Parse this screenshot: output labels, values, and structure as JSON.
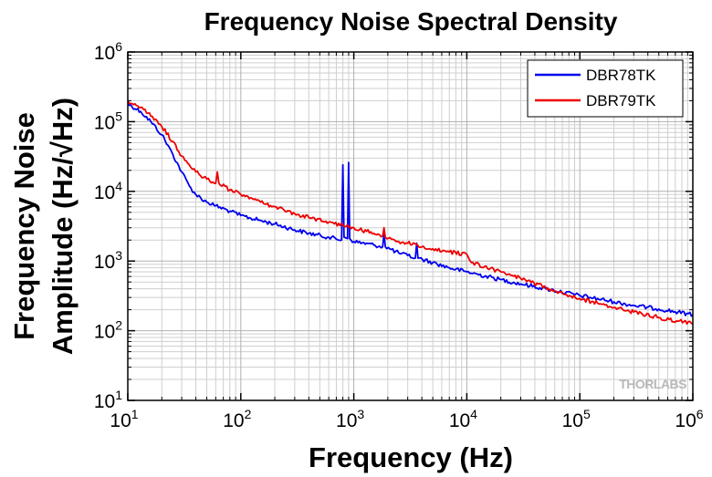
{
  "chart_data": {
    "type": "line",
    "title": "Frequency Noise Spectral Density",
    "xlabel": "Frequency (Hz)",
    "ylabel_line1": "Frequency Noise",
    "ylabel_line2": "Amplitude (Hz/√Hz)",
    "x_scale": "log",
    "y_scale": "log",
    "xlim": [
      10,
      1000000
    ],
    "ylim": [
      10,
      1000000
    ],
    "x_ticks": [
      {
        "base": "10",
        "exp": "1",
        "value": 10
      },
      {
        "base": "10",
        "exp": "2",
        "value": 100
      },
      {
        "base": "10",
        "exp": "3",
        "value": 1000
      },
      {
        "base": "10",
        "exp": "4",
        "value": 10000
      },
      {
        "base": "10",
        "exp": "5",
        "value": 100000
      },
      {
        "base": "10",
        "exp": "6",
        "value": 1000000
      }
    ],
    "y_ticks": [
      {
        "base": "10",
        "exp": "1",
        "value": 10
      },
      {
        "base": "10",
        "exp": "2",
        "value": 100
      },
      {
        "base": "10",
        "exp": "3",
        "value": 1000
      },
      {
        "base": "10",
        "exp": "4",
        "value": 10000
      },
      {
        "base": "10",
        "exp": "5",
        "value": 100000
      },
      {
        "base": "10",
        "exp": "6",
        "value": 1000000
      }
    ],
    "grid": true,
    "legend_position": "top-right",
    "series": [
      {
        "name": "DBR78TK",
        "color": "#0000ee",
        "points": [
          [
            10,
            180000
          ],
          [
            13,
            140000
          ],
          [
            16,
            100000
          ],
          [
            20,
            65000
          ],
          [
            25,
            34000
          ],
          [
            30,
            19000
          ],
          [
            35,
            12000
          ],
          [
            40,
            9000
          ],
          [
            50,
            7000
          ],
          [
            60,
            6200
          ],
          [
            80,
            5200
          ],
          [
            100,
            4500
          ],
          [
            150,
            3800
          ],
          [
            200,
            3400
          ],
          [
            300,
            2800
          ],
          [
            400,
            2500
          ],
          [
            600,
            2200
          ],
          [
            780,
            2000
          ],
          [
            800,
            24000
          ],
          [
            820,
            2200
          ],
          [
            880,
            2100
          ],
          [
            900,
            26000
          ],
          [
            920,
            2100
          ],
          [
            1000,
            1900
          ],
          [
            1500,
            1700
          ],
          [
            1800,
            1600
          ],
          [
            1850,
            2500
          ],
          [
            1900,
            1600
          ],
          [
            2500,
            1300
          ],
          [
            3000,
            1200
          ],
          [
            3500,
            1100
          ],
          [
            3600,
            1800
          ],
          [
            3700,
            1100
          ],
          [
            5000,
            950
          ],
          [
            7000,
            800
          ],
          [
            10000,
            700
          ],
          [
            20000,
            540
          ],
          [
            30000,
            470
          ],
          [
            50000,
            400
          ],
          [
            100000,
            320
          ],
          [
            200000,
            260
          ],
          [
            300000,
            230
          ],
          [
            500000,
            205
          ],
          [
            1000000,
            170
          ]
        ]
      },
      {
        "name": "DBR79TK",
        "color": "#ee0000",
        "points": [
          [
            10,
            200000
          ],
          [
            13,
            160000
          ],
          [
            16,
            120000
          ],
          [
            20,
            85000
          ],
          [
            25,
            52000
          ],
          [
            30,
            32000
          ],
          [
            35,
            24000
          ],
          [
            40,
            19000
          ],
          [
            50,
            15000
          ],
          [
            60,
            13000
          ],
          [
            62,
            19000
          ],
          [
            64,
            13000
          ],
          [
            80,
            10500
          ],
          [
            100,
            9000
          ],
          [
            150,
            7000
          ],
          [
            200,
            6000
          ],
          [
            300,
            4800
          ],
          [
            400,
            4200
          ],
          [
            600,
            3600
          ],
          [
            800,
            3300
          ],
          [
            900,
            3100
          ],
          [
            1000,
            3000
          ],
          [
            1500,
            2500
          ],
          [
            1800,
            2300
          ],
          [
            1850,
            3000
          ],
          [
            1900,
            2200
          ],
          [
            2500,
            1900
          ],
          [
            3000,
            1800
          ],
          [
            4000,
            1600
          ],
          [
            5000,
            1500
          ],
          [
            7000,
            1350
          ],
          [
            10000,
            1250
          ],
          [
            11000,
            950
          ],
          [
            20000,
            700
          ],
          [
            30000,
            560
          ],
          [
            50000,
            420
          ],
          [
            100000,
            290
          ],
          [
            200000,
            215
          ],
          [
            300000,
            185
          ],
          [
            500000,
            155
          ],
          [
            1000000,
            125
          ]
        ]
      }
    ]
  },
  "watermark": "THORLABS"
}
